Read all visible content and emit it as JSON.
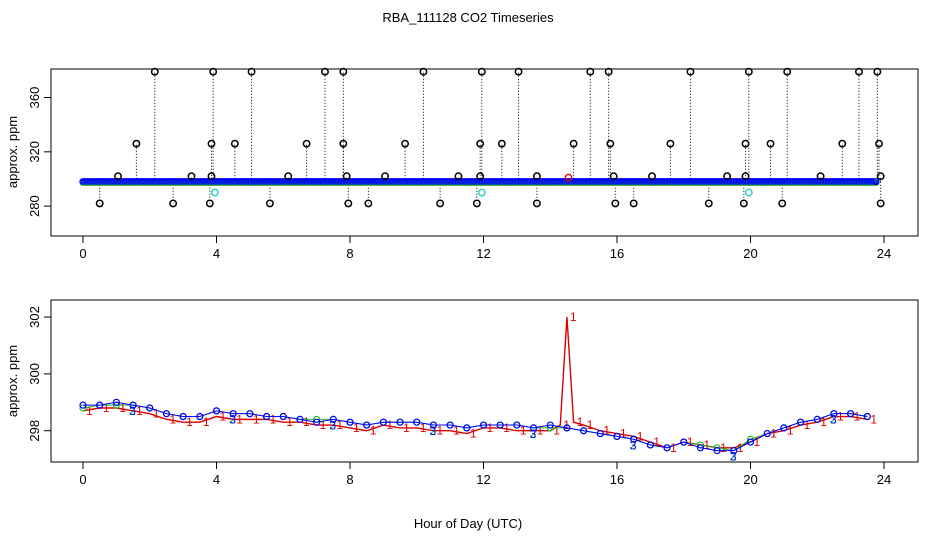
{
  "title": "RBA_111128  CO2 Timeseries",
  "xlabel": "Hour of Day (UTC)",
  "colors": {
    "black": "#000000",
    "blue": "#0000ff",
    "green": "#22bb22",
    "red": "#dd0000",
    "cyan": "#22cccc"
  },
  "chart_data": [
    {
      "type": "scatter",
      "panel": "top",
      "ylabel": "approx. ppm",
      "xlim": [
        0,
        24
      ],
      "ylim": [
        258,
        381
      ],
      "xticks": [
        "0",
        "4",
        "8",
        "12",
        "16",
        "20",
        "24"
      ],
      "yticks": [
        "280",
        "320",
        "360"
      ],
      "ytick_values": [
        280,
        320,
        360
      ],
      "baseline_series": {
        "name": "main",
        "color": "blue",
        "values_approx": 298,
        "x_range": [
          0,
          23.8
        ]
      },
      "spikes_high": {
        "value": 379,
        "x": [
          2.15,
          3.9,
          5.05,
          7.25,
          7.8,
          10.2,
          11.95,
          13.05,
          15.2,
          15.75,
          18.2,
          19.95,
          21.1,
          23.25,
          23.8
        ]
      },
      "spikes_mid": {
        "value": 326,
        "x": [
          1.6,
          3.85,
          4.55,
          6.7,
          7.8,
          9.65,
          11.9,
          12.55,
          14.7,
          15.8,
          17.6,
          19.85,
          20.6,
          22.75,
          23.85
        ]
      },
      "spikes_low": {
        "value": 302,
        "x": [
          1.05,
          3.25,
          3.85,
          6.15,
          7.9,
          9.05,
          11.25,
          11.9,
          13.6,
          15.9,
          17.05,
          19.3,
          19.85,
          22.1,
          23.9
        ]
      },
      "dips": {
        "value": 282,
        "x": [
          0.5,
          2.7,
          3.8,
          5.6,
          7.95,
          8.55,
          10.7,
          11.8,
          13.6,
          15.95,
          16.5,
          18.75,
          19.8,
          20.95,
          23.9
        ]
      },
      "other_points": [
        {
          "x": 3.95,
          "y": 290,
          "color": "cyan"
        },
        {
          "x": 11.95,
          "y": 290,
          "color": "cyan"
        },
        {
          "x": 19.95,
          "y": 290,
          "color": "cyan"
        },
        {
          "x": 14.55,
          "y": 301,
          "color": "red"
        }
      ]
    },
    {
      "type": "line",
      "panel": "bottom",
      "ylabel": "approx. ppm",
      "xlim": [
        0,
        24
      ],
      "ylim": [
        296.9,
        302.6
      ],
      "xticks": [
        "0",
        "4",
        "8",
        "12",
        "16",
        "20",
        "24"
      ],
      "yticks": [
        "298",
        "300",
        "302"
      ],
      "ytick_values": [
        298,
        300,
        302
      ],
      "series": [
        {
          "name": "1",
          "color": "red",
          "marker": "1",
          "x": [
            0,
            0.5,
            1,
            1.5,
            2,
            2.5,
            3,
            3.5,
            4,
            4.5,
            5,
            5.5,
            6,
            6.5,
            7,
            7.5,
            8,
            8.5,
            9,
            9.5,
            10,
            10.5,
            11,
            11.5,
            12,
            12.5,
            13,
            13.5,
            14,
            14.3,
            14.5,
            14.7,
            15,
            15.5,
            16,
            16.5,
            17,
            17.5,
            18,
            18.5,
            19,
            19.5,
            20,
            20.5,
            21,
            21.5,
            22,
            22.5,
            23,
            23.5
          ],
          "y": [
            298.7,
            298.8,
            298.8,
            298.7,
            298.6,
            298.4,
            298.3,
            298.3,
            298.5,
            298.4,
            298.4,
            298.4,
            298.3,
            298.3,
            298.2,
            298.2,
            298.1,
            298.0,
            298.2,
            298.1,
            298.1,
            298.0,
            298.0,
            297.9,
            298.1,
            298.1,
            298.0,
            298.0,
            298.0,
            298.2,
            302.0,
            298.3,
            298.2,
            298.0,
            297.9,
            297.8,
            297.6,
            297.4,
            297.6,
            297.5,
            297.4,
            297.4,
            297.6,
            297.9,
            298.0,
            298.2,
            298.3,
            298.5,
            298.5,
            298.4
          ]
        },
        {
          "name": "2",
          "color": "green",
          "marker": "2",
          "x": [
            0,
            0.5,
            1,
            1.5,
            2,
            2.5,
            3,
            3.5,
            4,
            4.5,
            5,
            5.5,
            6,
            6.5,
            7,
            7.5,
            8,
            8.5,
            9,
            9.5,
            10,
            10.5,
            11,
            11.5,
            12,
            12.5,
            13,
            13.5,
            14,
            14.5,
            15,
            15.5,
            16,
            16.5,
            17,
            17.5,
            18,
            18.5,
            19,
            19.5,
            20,
            20.5,
            21,
            21.5,
            22,
            22.5,
            23,
            23.5
          ],
          "y": [
            298.8,
            298.9,
            298.9,
            298.9,
            298.8,
            298.6,
            298.5,
            298.5,
            298.7,
            298.6,
            298.6,
            298.5,
            298.5,
            298.4,
            298.4,
            298.4,
            298.3,
            298.2,
            298.3,
            298.3,
            298.3,
            298.2,
            298.2,
            298.1,
            298.2,
            298.2,
            298.2,
            298.1,
            298.1,
            298.1,
            298.0,
            297.9,
            297.8,
            297.7,
            297.5,
            297.4,
            297.6,
            297.5,
            297.4,
            297.3,
            297.7,
            297.9,
            298.1,
            298.3,
            298.4,
            298.6,
            298.6,
            298.5
          ]
        },
        {
          "name": "3",
          "color": "blue",
          "marker": "3",
          "x": [
            0,
            0.5,
            1,
            1.5,
            2,
            2.5,
            3,
            3.5,
            4,
            4.5,
            5,
            5.5,
            6,
            6.5,
            7,
            7.5,
            8,
            8.5,
            9,
            9.5,
            10,
            10.5,
            11,
            11.5,
            12,
            12.5,
            13,
            13.5,
            14,
            14.5,
            15,
            15.5,
            16,
            16.5,
            17,
            17.5,
            18,
            18.5,
            19,
            19.5,
            20,
            20.5,
            21,
            21.5,
            22,
            22.5,
            23,
            23.5
          ],
          "y": [
            298.9,
            298.9,
            299.0,
            298.9,
            298.8,
            298.6,
            298.5,
            298.5,
            298.7,
            298.6,
            298.6,
            298.5,
            298.5,
            298.4,
            298.3,
            298.4,
            298.3,
            298.2,
            298.3,
            298.3,
            298.3,
            298.2,
            298.2,
            298.1,
            298.2,
            298.2,
            298.2,
            298.1,
            298.2,
            298.1,
            298.0,
            297.9,
            297.8,
            297.7,
            297.5,
            297.4,
            297.6,
            297.4,
            297.3,
            297.3,
            297.6,
            297.9,
            298.1,
            298.3,
            298.4,
            298.6,
            298.6,
            298.5
          ]
        }
      ]
    }
  ]
}
